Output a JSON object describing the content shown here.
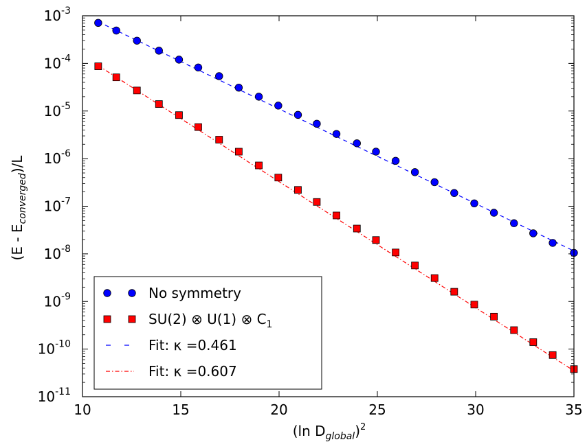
{
  "chart_data": {
    "type": "scatter",
    "xlabel_parts": {
      "prefix": "(ln D",
      "subscript": "global",
      "suffix": ")",
      "superscript": "2"
    },
    "ylabel_parts": {
      "prefix": "(E - E",
      "subscript": "converged",
      "suffix": ")/L"
    },
    "xlim": [
      10,
      35
    ],
    "ylim_log10": [
      -11,
      -3
    ],
    "yscale": "log",
    "x_ticks": [
      10,
      15,
      20,
      25,
      30,
      35
    ],
    "x_tick_labels": [
      "10",
      "15",
      "20",
      "25",
      "30",
      "35"
    ],
    "y_tick_exponents": [
      -3,
      -4,
      -5,
      -6,
      -7,
      -8,
      -9,
      -10,
      -11
    ],
    "y_tick_base": "10",
    "grid": false,
    "legend_position": "lower-left",
    "series": [
      {
        "name": "No symmetry",
        "marker": "circle",
        "color": "#0000ff",
        "x": [
          10.8,
          11.72,
          12.77,
          13.89,
          14.91,
          15.89,
          16.95,
          17.95,
          18.97,
          19.96,
          20.96,
          21.92,
          22.92,
          23.96,
          24.93,
          25.93,
          26.91,
          27.91,
          28.91,
          29.93,
          30.93,
          31.95,
          32.93,
          33.92,
          35.0
        ],
        "y": [
          0.00071,
          0.00049,
          0.0003,
          0.000185,
          0.00012,
          8.2e-05,
          5.4e-05,
          3.1e-05,
          2e-05,
          1.3e-05,
          8.3e-06,
          5.4e-06,
          3.3e-06,
          2.1e-06,
          1.4e-06,
          9e-07,
          5.2e-07,
          3.2e-07,
          1.9e-07,
          1.15e-07,
          7.3e-08,
          4.4e-08,
          2.7e-08,
          1.7e-08,
          1.05e-08
        ]
      },
      {
        "name": "SU(2) ⊗ U(1) ⊗ C",
        "name_subscript": "1",
        "marker": "square",
        "color": "#ff0000",
        "x": [
          10.8,
          11.72,
          12.77,
          13.89,
          14.91,
          15.89,
          16.95,
          17.95,
          18.97,
          19.96,
          20.96,
          21.92,
          22.92,
          23.96,
          24.93,
          25.93,
          26.91,
          27.91,
          28.91,
          29.93,
          30.93,
          31.95,
          32.93,
          33.92,
          35.0
        ],
        "y": [
          8.7e-05,
          5.1e-05,
          2.7e-05,
          1.4e-05,
          8.2e-06,
          4.6e-06,
          2.5e-06,
          1.4e-06,
          7.2e-07,
          4e-07,
          2.2e-07,
          1.23e-07,
          6.4e-08,
          3.4e-08,
          1.95e-08,
          1.07e-08,
          5.7e-09,
          3.1e-09,
          1.6e-09,
          8.6e-10,
          4.8e-10,
          2.5e-10,
          1.4e-10,
          7.5e-11,
          3.8e-11
        ]
      },
      {
        "name": "Fit: κ =0.461",
        "line_style": "dashed",
        "color": "#0000ff",
        "x": [
          10.8,
          35.0
        ],
        "y": [
          0.00075,
          1.15e-08
        ]
      },
      {
        "name": "Fit: κ =0.607",
        "line_style": "dashdot",
        "color": "#ff0000",
        "x": [
          10.8,
          35.0
        ],
        "y": [
          9e-05,
          3.5e-11
        ]
      }
    ]
  }
}
